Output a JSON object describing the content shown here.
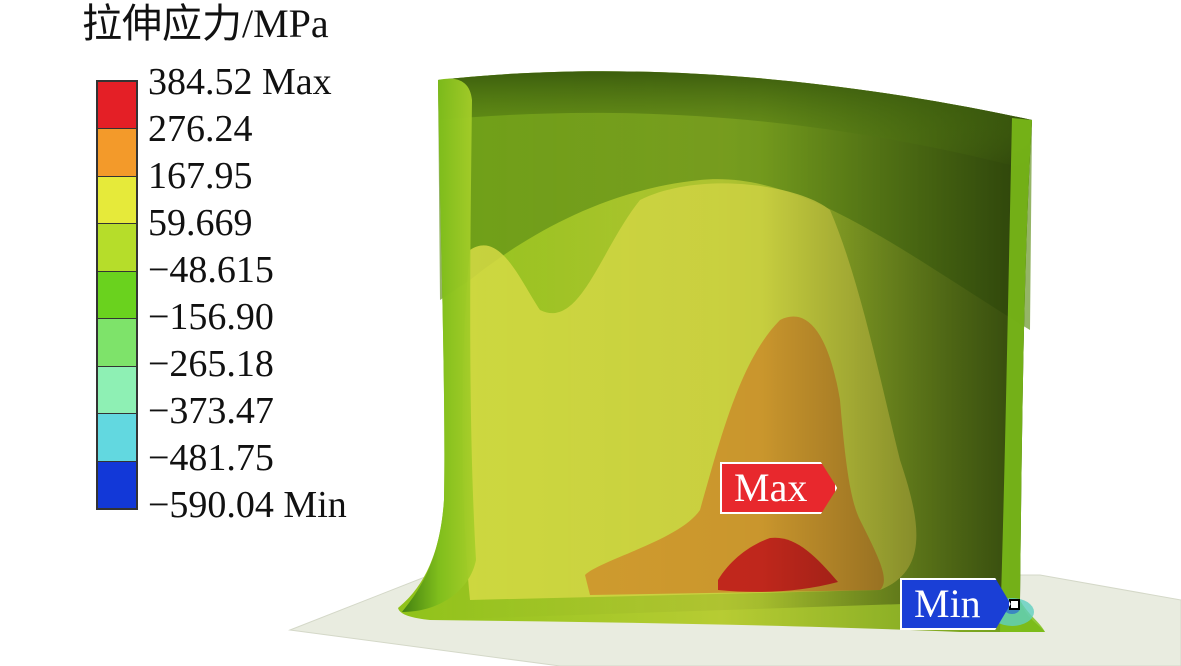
{
  "legend": {
    "title": "拉伸应力/MPa",
    "labels": [
      "384.52 Max",
      "276.24",
      "167.95",
      "59.669",
      "−48.615",
      "−156.90",
      "−265.18",
      "−373.47",
      "−481.75",
      "−590.04 Min"
    ],
    "colors": [
      "#e41f26",
      "#f39a2a",
      "#e6ea3a",
      "#b6dd2a",
      "#6ad21e",
      "#7ee36a",
      "#8ef0b4",
      "#62d8e0",
      "#1238d8"
    ]
  },
  "markers": {
    "max_label": "Max",
    "min_label": "Min",
    "max_color": "#e8282d",
    "min_color": "#1a3fd6"
  }
}
